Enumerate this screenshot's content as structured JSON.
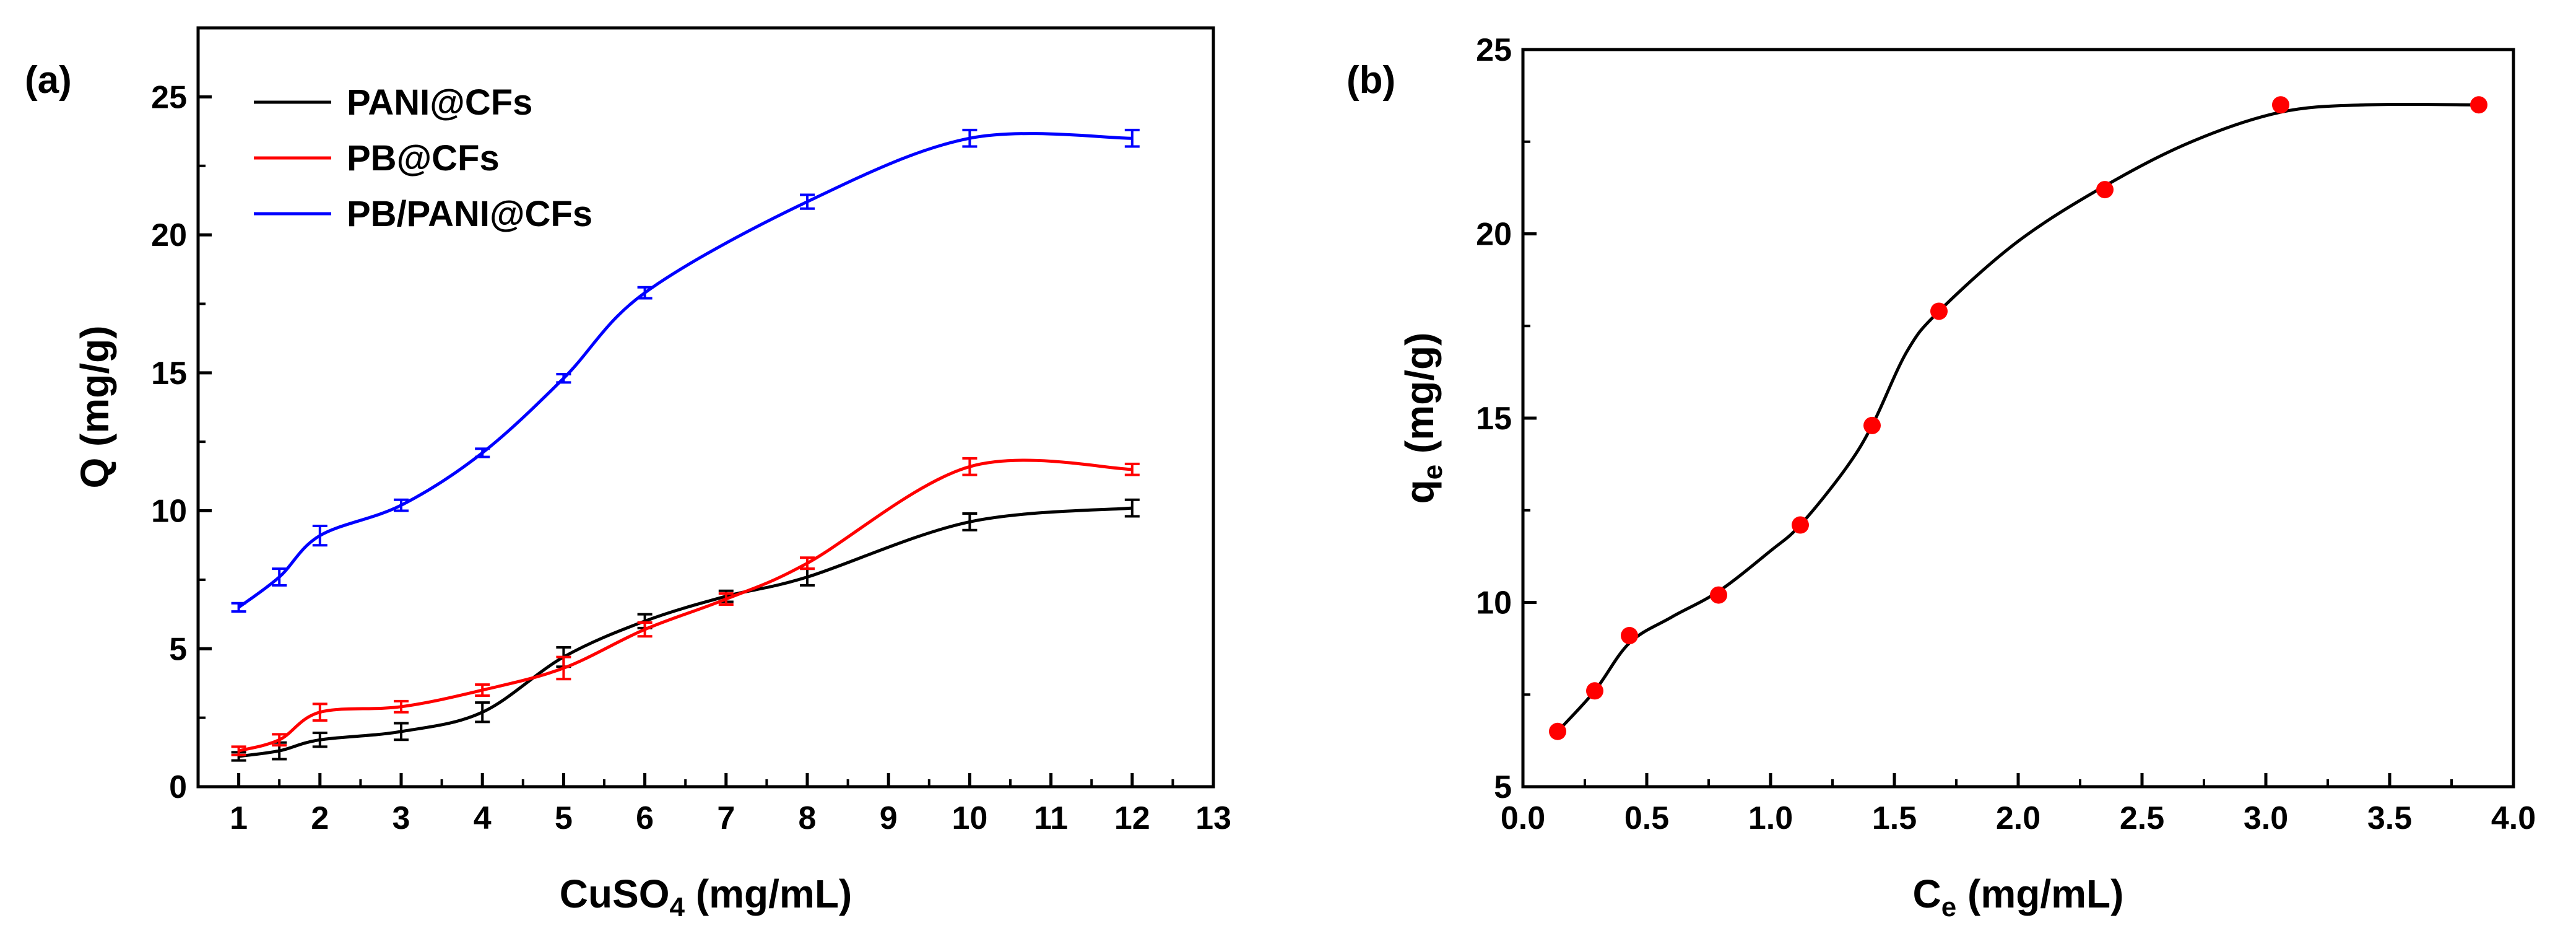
{
  "chart_data": [
    {
      "panel_label": "(a)",
      "type": "line",
      "xlabel": "CuSO",
      "xlabel_sub": "4",
      "xlabel_unit": " (mg/mL)",
      "ylabel": "Q (mg/g)",
      "xlim": [
        0.5,
        13
      ],
      "ylim": [
        0,
        27.5
      ],
      "xticks": [
        1,
        2,
        3,
        4,
        5,
        6,
        7,
        8,
        9,
        10,
        11,
        12,
        13
      ],
      "yticks": [
        0,
        5,
        10,
        15,
        20,
        25
      ],
      "legend_position": "top-left",
      "series": [
        {
          "name": "PANI@CFs",
          "color": "#000000",
          "x": [
            1,
            1.5,
            2,
            3,
            4,
            5,
            6,
            7,
            8,
            10,
            12
          ],
          "values": [
            1.1,
            1.3,
            1.7,
            2.0,
            2.7,
            4.7,
            6.0,
            6.9,
            7.6,
            9.6,
            10.1
          ],
          "errors": [
            0.15,
            0.3,
            0.25,
            0.3,
            0.35,
            0.35,
            0.25,
            0.2,
            0.3,
            0.3,
            0.3
          ]
        },
        {
          "name": "PB@CFs",
          "color": "#ff0000",
          "x": [
            1,
            1.5,
            2,
            3,
            4,
            5,
            6,
            7,
            8,
            10,
            12
          ],
          "values": [
            1.3,
            1.7,
            2.7,
            2.9,
            3.5,
            4.3,
            5.7,
            6.8,
            8.1,
            11.6,
            11.5
          ],
          "errors": [
            0.15,
            0.2,
            0.3,
            0.2,
            0.2,
            0.4,
            0.25,
            0.2,
            0.2,
            0.3,
            0.2
          ]
        },
        {
          "name": "PB/PANI@CFs",
          "color": "#0000ff",
          "x": [
            1,
            1.5,
            2,
            3,
            4,
            5,
            6,
            7,
            8,
            10,
            12
          ],
          "values": [
            6.5,
            7.6,
            9.1,
            10.2,
            12.1,
            14.8,
            17.9,
            null,
            21.2,
            23.5,
            23.5
          ],
          "errors": [
            0.15,
            0.3,
            0.35,
            0.2,
            0.15,
            0.15,
            0.2,
            null,
            0.25,
            0.3,
            0.3
          ]
        }
      ]
    },
    {
      "panel_label": "(b)",
      "type": "scatter",
      "xlabel": "C",
      "xlabel_sub": "e",
      "xlabel_unit": " (mg/mL)",
      "ylabel": "q",
      "ylabel_sub": "e",
      "ylabel_unit": " (mg/g)",
      "xlim": [
        0,
        4.0
      ],
      "ylim": [
        5,
        25
      ],
      "xticks": [
        0.0,
        0.5,
        1.0,
        1.5,
        2.0,
        2.5,
        3.0,
        3.5,
        4.0
      ],
      "yticks": [
        5,
        10,
        15,
        20,
        25
      ],
      "series": [
        {
          "color": "#ff0000",
          "x": [
            0.14,
            0.29,
            0.43,
            0.79,
            1.12,
            1.41,
            1.68,
            2.35,
            3.06,
            3.86
          ],
          "values": [
            6.5,
            7.6,
            9.1,
            10.2,
            12.1,
            14.8,
            17.9,
            21.2,
            23.5,
            23.5
          ]
        }
      ],
      "fit_curve": {
        "color": "#000000",
        "x": [
          0.14,
          0.29,
          0.43,
          0.6,
          0.79,
          1.0,
          1.12,
          1.3,
          1.41,
          1.55,
          1.68,
          2.0,
          2.35,
          2.7,
          3.06,
          3.4,
          3.86
        ],
        "values": [
          6.5,
          7.6,
          8.9,
          9.6,
          10.3,
          11.4,
          12.1,
          13.6,
          14.8,
          16.8,
          17.9,
          19.8,
          21.3,
          22.5,
          23.3,
          23.5,
          23.5
        ]
      }
    }
  ]
}
